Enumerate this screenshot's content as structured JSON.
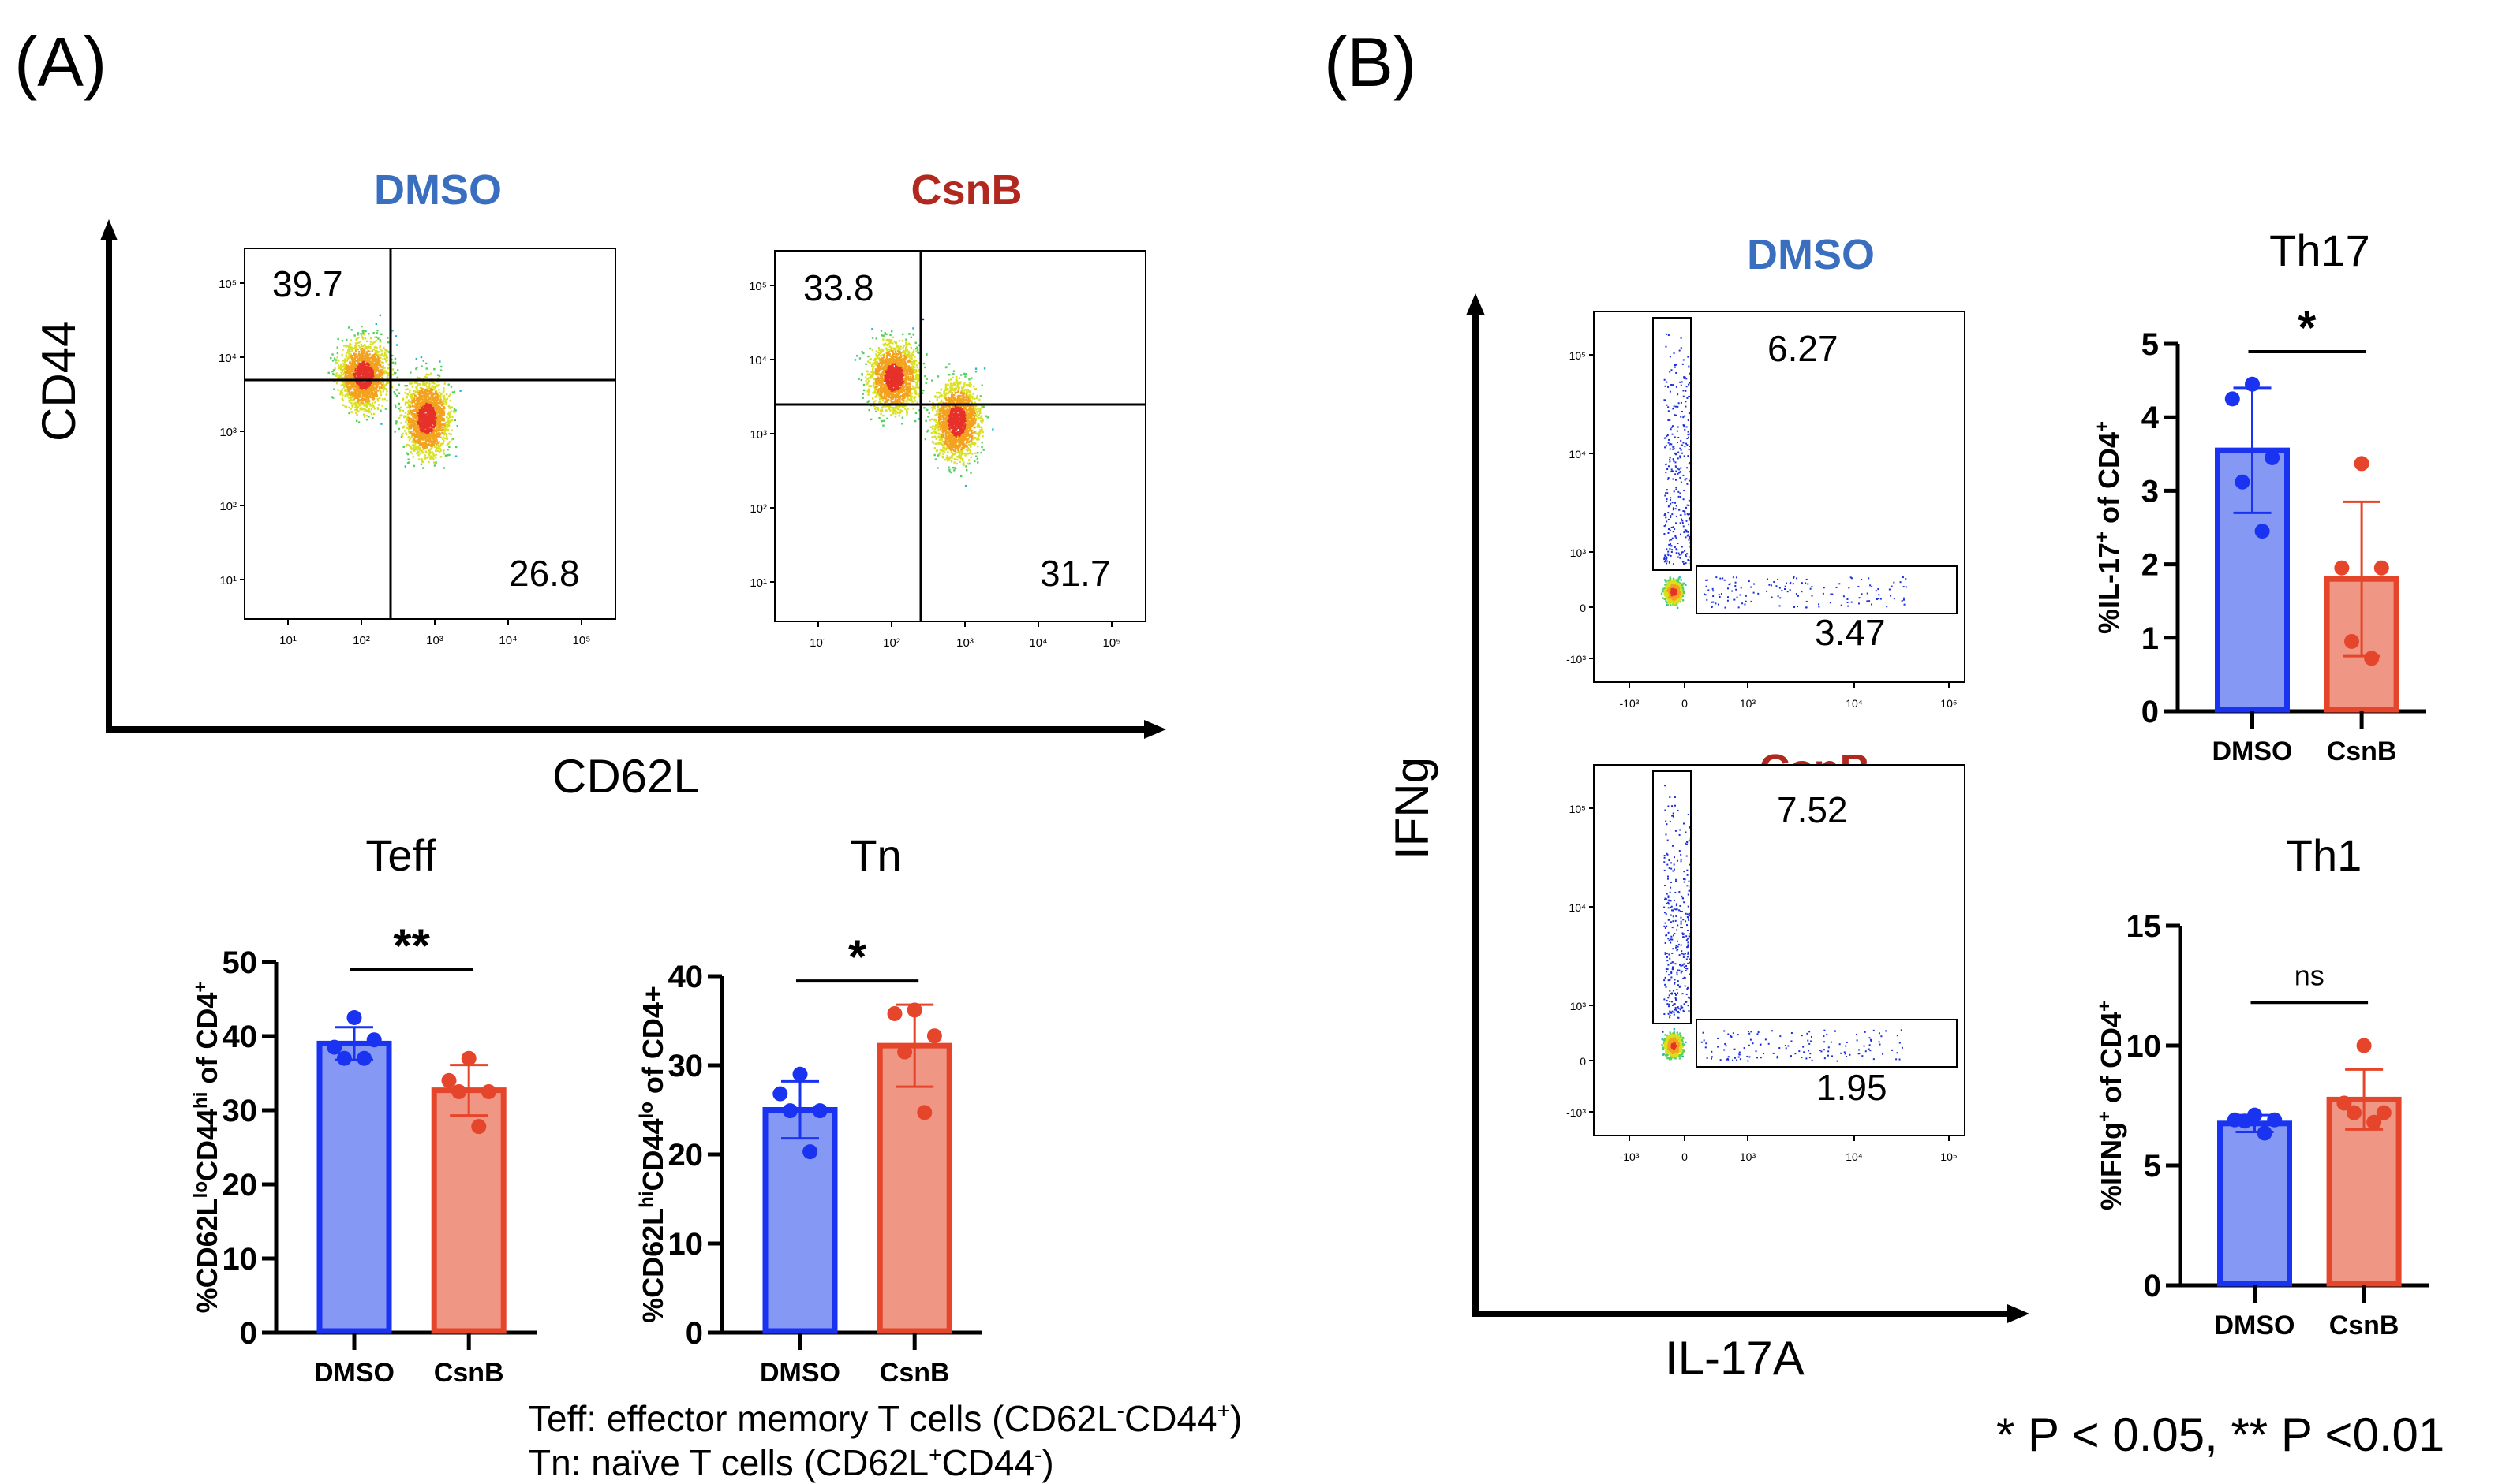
{
  "panels": {
    "A": {
      "label": "(A)"
    },
    "B": {
      "label": "(B)"
    }
  },
  "colors": {
    "dmso_title": "#3a6fbf",
    "csnb_title": "#b0281e",
    "dmso_bar_fill": "#8598f4",
    "dmso_bar_edge": "#1a33f0",
    "csnb_bar_fill": "#ef9784",
    "csnb_bar_edge": "#e5452a"
  },
  "flow_A": {
    "y_axis_title": "CD44",
    "x_axis_title": "CD62L",
    "plots": [
      {
        "condition": "DMSO",
        "upper_left": "39.7",
        "lower_right": "26.8"
      },
      {
        "condition": "CsnB",
        "upper_left": "33.8",
        "lower_right": "31.7"
      }
    ],
    "y_ticks": [
      "10¹",
      "10²",
      "10³",
      "10⁴",
      "10⁵"
    ],
    "x_ticks": [
      "10¹",
      "10²",
      "10³",
      "10⁴",
      "10⁵"
    ]
  },
  "flow_B": {
    "y_axis_title": "IFNg",
    "x_axis_title": "IL-17A",
    "plots": [
      {
        "condition": "DMSO",
        "upper_gate": "6.27",
        "lower_gate": "3.47"
      },
      {
        "condition": "CsnB",
        "upper_gate": "7.52",
        "lower_gate": "1.95"
      }
    ],
    "y_ticks": [
      "-10³",
      "0",
      "10³",
      "10⁴",
      "10⁵"
    ],
    "x_ticks": [
      "-10³",
      "0",
      "10³",
      "10⁴",
      "10⁵"
    ]
  },
  "chart_data": [
    {
      "id": "teff",
      "type": "bar",
      "title": "Teff",
      "ylabel": "%CD62L^lo CD44^hi of CD4+",
      "ylabel_parts": [
        "%CD62L",
        "lo",
        "CD44",
        "hi",
        " of CD4",
        "+"
      ],
      "categories": [
        "DMSO",
        "CsnB"
      ],
      "values": [
        39.0,
        32.7
      ],
      "errors": [
        2.2,
        3.4
      ],
      "points": [
        [
          42.5,
          38.5,
          39.5,
          37.0,
          37.0
        ],
        [
          37.0,
          34.0,
          32.5,
          32.5,
          27.8
        ]
      ],
      "ylim": [
        0,
        50
      ],
      "yticks": [
        0,
        10,
        20,
        30,
        40,
        50
      ],
      "significance": "**"
    },
    {
      "id": "tn",
      "type": "bar",
      "title": "Tn",
      "ylabel": "%CD62L^hi CD44^lo of CD4+",
      "ylabel_parts": [
        "%CD62L",
        "hi",
        "CD44",
        "lo",
        " of CD4+",
        ""
      ],
      "categories": [
        "DMSO",
        "CsnB"
      ],
      "values": [
        25.0,
        32.2
      ],
      "errors": [
        3.2,
        4.6
      ],
      "points": [
        [
          29.0,
          26.8,
          24.9,
          24.9,
          20.3
        ],
        [
          36.2,
          35.8,
          33.3,
          31.5,
          24.7
        ]
      ],
      "ylim": [
        0,
        40
      ],
      "yticks": [
        0,
        10,
        20,
        30,
        40
      ],
      "significance": "*"
    },
    {
      "id": "th17",
      "type": "bar",
      "title": "Th17",
      "ylabel": "%IL-17+ of CD4+",
      "ylabel_parts": [
        "%IL-17",
        "+",
        " of CD4",
        "+",
        "",
        ""
      ],
      "categories": [
        "DMSO",
        "CsnB"
      ],
      "values": [
        3.55,
        1.8
      ],
      "errors": [
        0.85,
        1.05
      ],
      "points": [
        [
          4.45,
          4.25,
          3.45,
          3.12,
          2.45
        ],
        [
          3.37,
          1.95,
          1.95,
          0.95,
          0.72
        ]
      ],
      "ylim": [
        0,
        5
      ],
      "yticks": [
        0,
        1,
        2,
        3,
        4,
        5
      ],
      "significance": "*"
    },
    {
      "id": "th1",
      "type": "bar",
      "title": "Th1",
      "ylabel": "%IFNg+ of CD4+",
      "ylabel_parts": [
        "%IFNg",
        "+",
        " of CD4",
        "+",
        "",
        ""
      ],
      "categories": [
        "DMSO",
        "CsnB"
      ],
      "values": [
        6.75,
        7.75
      ],
      "errors": [
        0.35,
        1.25
      ],
      "points": [
        [
          7.1,
          6.9,
          6.9,
          6.85,
          6.35
        ],
        [
          10.0,
          7.6,
          7.2,
          7.2,
          6.8
        ]
      ],
      "ylim": [
        0,
        15
      ],
      "yticks": [
        0,
        5,
        10,
        15
      ],
      "significance": "ns"
    }
  ],
  "notes": {
    "teff_def_prefix": "Teff: effector memory T cells (CD62L",
    "teff_def_sup1": "-",
    "teff_def_mid": "CD44",
    "teff_def_sup2": "+",
    "teff_def_suffix": ")",
    "tn_def_prefix": "Tn: naïve T cells (CD62L",
    "tn_def_sup1": "+",
    "tn_def_mid": "CD44",
    "tn_def_sup2": "-",
    "tn_def_suffix": ")",
    "pvalue_legend": "*  P < 0.05, ** P <0.01"
  }
}
